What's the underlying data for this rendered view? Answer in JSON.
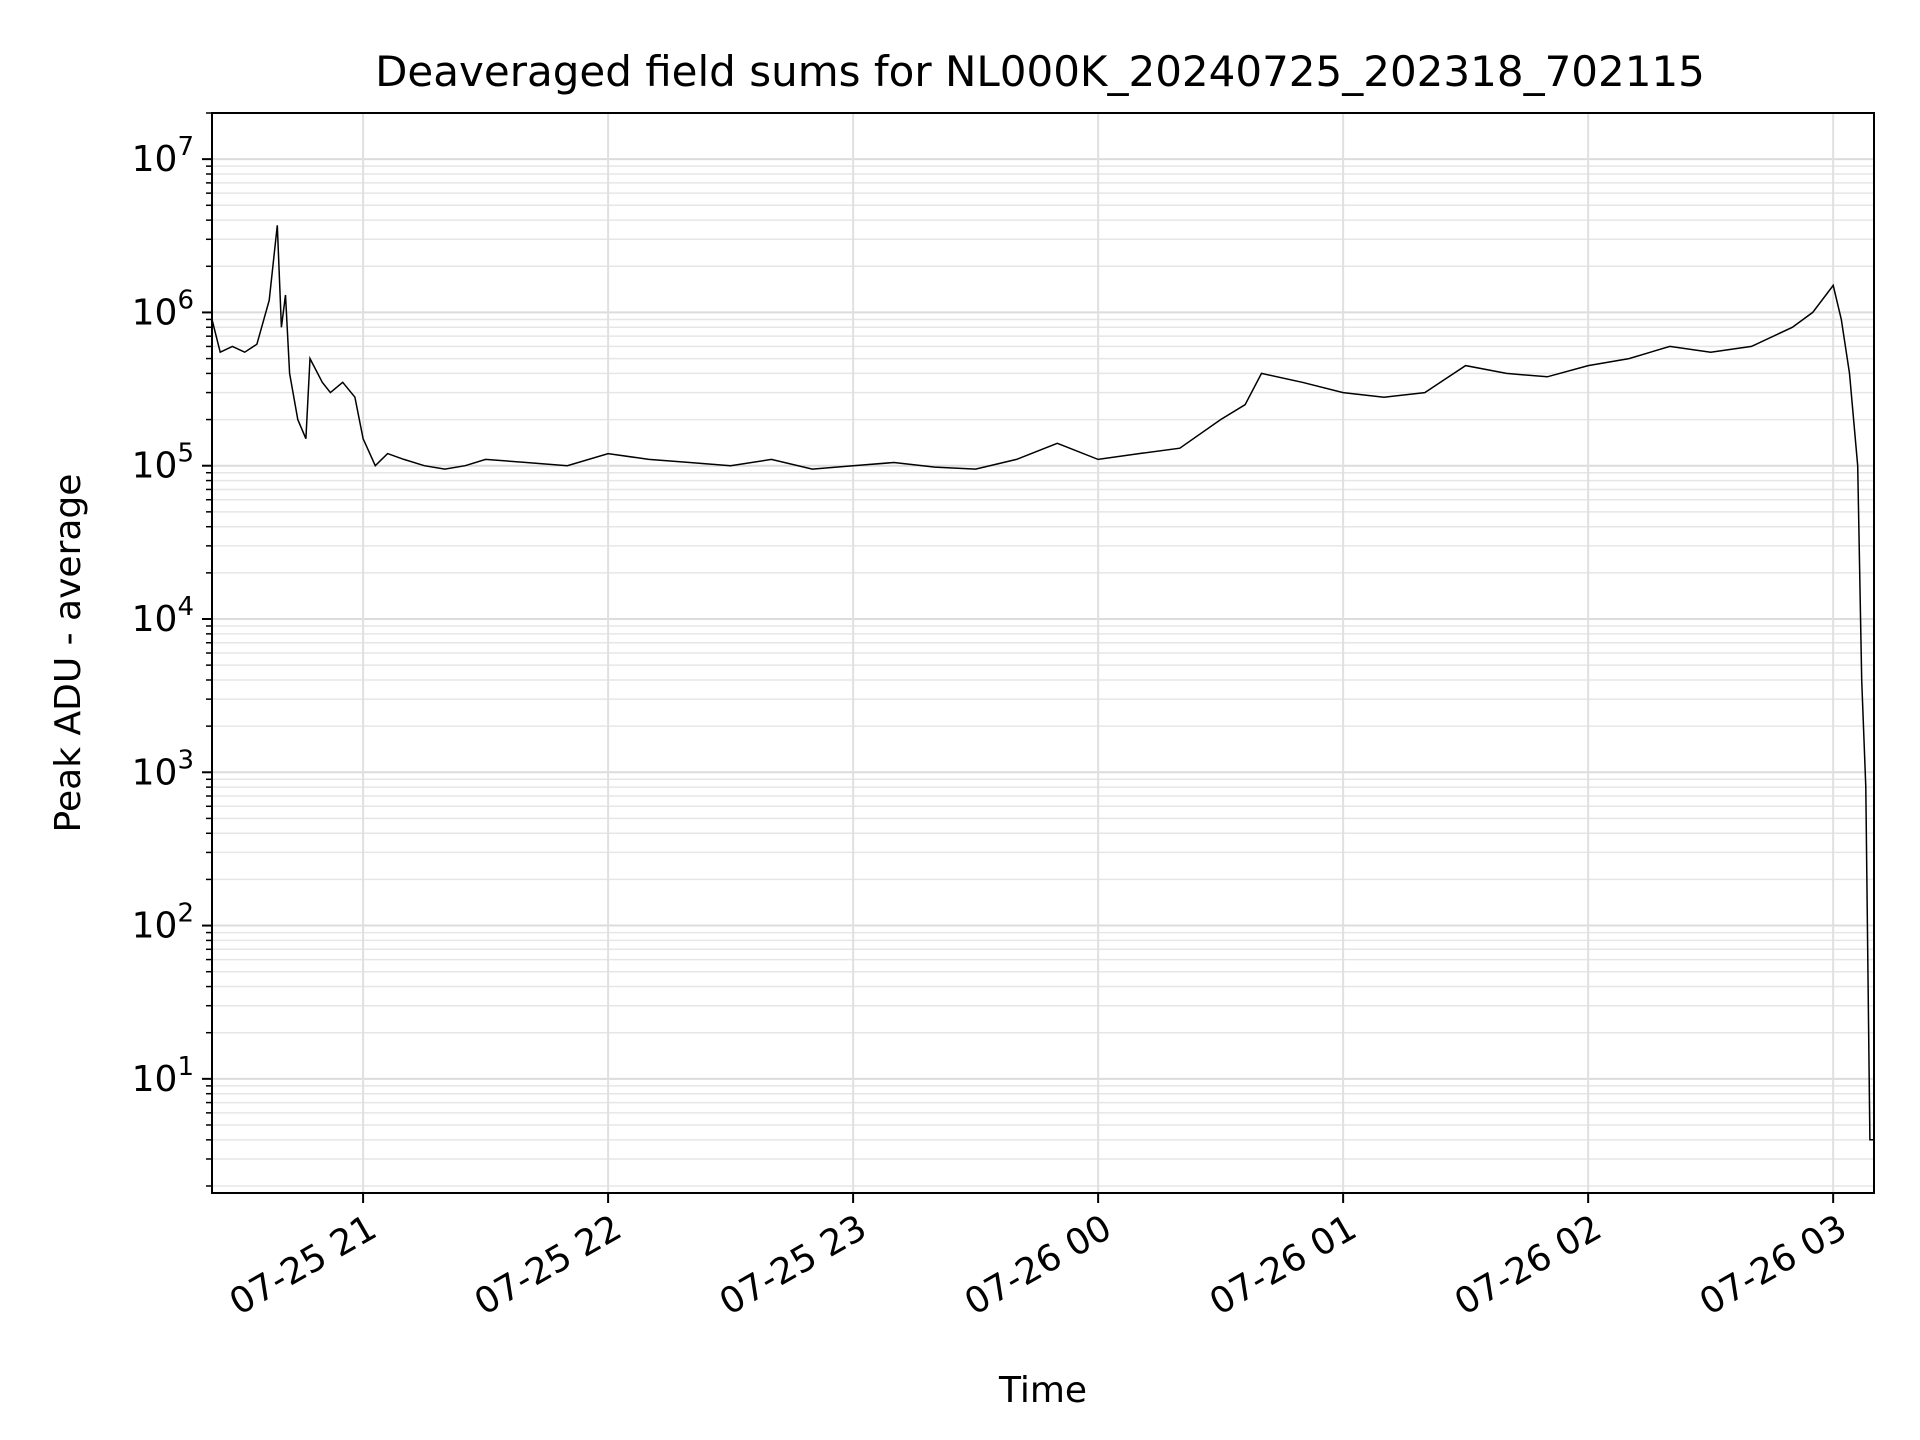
{
  "chart_data": {
    "type": "line",
    "title": "Deaveraged field sums for NL000K_20240725_202318_702115",
    "xlabel": "Time",
    "ylabel": "Peak ADU - average",
    "yscale": "log",
    "ylim": [
      1.8,
      20000000
    ],
    "xlim": [
      "07-25 20:23",
      "07-26 03:10"
    ],
    "grid": true,
    "series_color": "#000000",
    "x_ticks": [
      {
        "t": "07-25 21:00",
        "label": "07-25 21"
      },
      {
        "t": "07-25 22:00",
        "label": "07-25 22"
      },
      {
        "t": "07-25 23:00",
        "label": "07-25 23"
      },
      {
        "t": "07-26 00:00",
        "label": "07-26 00"
      },
      {
        "t": "07-26 01:00",
        "label": "07-26 01"
      },
      {
        "t": "07-26 02:00",
        "label": "07-26 02"
      },
      {
        "t": "07-26 03:00",
        "label": "07-26 03"
      }
    ],
    "y_ticks": [
      {
        "exp": 1,
        "base": "10",
        "sup": "1"
      },
      {
        "exp": 2,
        "base": "10",
        "sup": "2"
      },
      {
        "exp": 3,
        "base": "10",
        "sup": "3"
      },
      {
        "exp": 4,
        "base": "10",
        "sup": "4"
      },
      {
        "exp": 5,
        "base": "10",
        "sup": "5"
      },
      {
        "exp": 6,
        "base": "10",
        "sup": "6"
      },
      {
        "exp": 7,
        "base": "10",
        "sup": "7"
      }
    ],
    "series": [
      {
        "x": [
          "07-25 20:23",
          "07-25 20:25",
          "07-25 20:28",
          "07-25 20:31",
          "07-25 20:34",
          "07-25 20:37",
          "07-25 20:39",
          "07-25 20:40",
          "07-25 20:41",
          "07-25 20:42",
          "07-25 20:44",
          "07-25 20:46",
          "07-25 20:47",
          "07-25 20:50",
          "07-25 20:52",
          "07-25 20:55",
          "07-25 20:58",
          "07-25 21:00",
          "07-25 21:03",
          "07-25 21:06",
          "07-25 21:10",
          "07-25 21:15",
          "07-25 21:20",
          "07-25 21:25",
          "07-25 21:30",
          "07-25 21:40",
          "07-25 21:50",
          "07-25 22:00",
          "07-25 22:10",
          "07-25 22:20",
          "07-25 22:30",
          "07-25 22:40",
          "07-25 22:50",
          "07-25 23:00",
          "07-25 23:10",
          "07-25 23:20",
          "07-25 23:30",
          "07-25 23:40",
          "07-25 23:50",
          "07-26 00:00",
          "07-26 00:10",
          "07-26 00:20",
          "07-26 00:30",
          "07-26 00:36",
          "07-26 00:40",
          "07-26 00:50",
          "07-26 01:00",
          "07-26 01:10",
          "07-26 01:20",
          "07-26 01:30",
          "07-26 01:40",
          "07-26 01:50",
          "07-26 02:00",
          "07-26 02:10",
          "07-26 02:20",
          "07-26 02:30",
          "07-26 02:40",
          "07-26 02:50",
          "07-26 02:55",
          "07-26 03:00",
          "07-26 03:02",
          "07-26 03:04",
          "07-26 03:06",
          "07-26 03:07",
          "07-26 03:08",
          "07-26 03:09",
          "07-26 03:10"
        ],
        "y": [
          900000,
          550000,
          600000,
          550000,
          620000,
          1200000,
          3700000,
          800000,
          1300000,
          400000,
          200000,
          150000,
          500000,
          350000,
          300000,
          350000,
          280000,
          150000,
          100000,
          120000,
          110000,
          100000,
          95000,
          100000,
          110000,
          105000,
          100000,
          120000,
          110000,
          105000,
          100000,
          110000,
          95000,
          100000,
          105000,
          98000,
          95000,
          110000,
          140000,
          110000,
          120000,
          130000,
          200000,
          250000,
          400000,
          350000,
          300000,
          280000,
          300000,
          450000,
          400000,
          380000,
          450000,
          500000,
          600000,
          550000,
          600000,
          800000,
          1000000,
          1500000,
          900000,
          400000,
          100000,
          4000,
          800,
          4,
          4
        ]
      }
    ]
  }
}
